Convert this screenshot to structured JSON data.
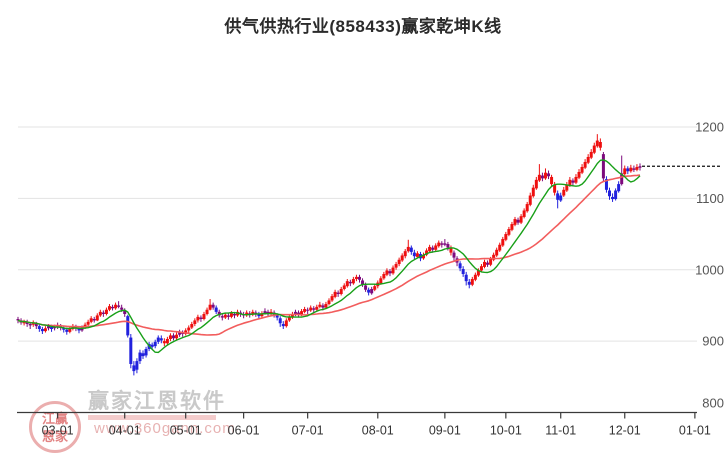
{
  "title": "供气供热行业(858433)赢家乾坤K线",
  "watermark": {
    "logo_line1": "江赢",
    "logo_line2": "恩家",
    "name": "赢家江恩软件",
    "url": "www.360gann.com"
  },
  "chart_data": {
    "type": "candlestick",
    "title": "供气供热行业(858433)赢家乾坤K线",
    "legend_position": "none",
    "grid": true,
    "y_axis": {
      "min": 800,
      "max": 1200,
      "ticks": [
        1200,
        1100,
        1000,
        900,
        800
      ],
      "side": "right"
    },
    "x_axis": {
      "tick_labels": [
        "03-01",
        "04-01",
        "05-01",
        "06-01",
        "07-01",
        "08-01",
        "09-01",
        "10-01",
        "11-01",
        "12-01",
        "01-01"
      ],
      "tick_indices": [
        13,
        35,
        55,
        74,
        95,
        118,
        140,
        160,
        178,
        199,
        222
      ]
    },
    "last_price": 1145,
    "ma": {
      "fast_period": 10,
      "slow_period": 30
    },
    "colors": {
      "up": "#ee0f0f",
      "down": "#2121dd",
      "neutral": "#7d0a7d",
      "ma_fast": "#18a018",
      "ma_slow": "#f25d5d",
      "grid": "#e3e3e3",
      "axis": "#3a3a3a",
      "y_label": "#555555",
      "x_label": "#333333",
      "last_price_line": "#111111"
    },
    "candles": [
      [
        931,
        934,
        925,
        929,
        2
      ],
      [
        929,
        932,
        923,
        926,
        2
      ],
      [
        925,
        930,
        922,
        928,
        0
      ],
      [
        927,
        930,
        920,
        924,
        2
      ],
      [
        924,
        927,
        917,
        922,
        2
      ],
      [
        923,
        929,
        920,
        925,
        0
      ],
      [
        924,
        927,
        917,
        921,
        2
      ],
      [
        921,
        924,
        913,
        917,
        1
      ],
      [
        917,
        920,
        910,
        914,
        1
      ],
      [
        914,
        921,
        912,
        918,
        0
      ],
      [
        918,
        924,
        915,
        921,
        2
      ],
      [
        920,
        923,
        913,
        917,
        1
      ],
      [
        918,
        923,
        915,
        920,
        2
      ],
      [
        920,
        926,
        917,
        922,
        2
      ],
      [
        921,
        924,
        915,
        919,
        2
      ],
      [
        918,
        922,
        912,
        916,
        1
      ],
      [
        916,
        919,
        909,
        913,
        1
      ],
      [
        913,
        920,
        911,
        917,
        0
      ],
      [
        917,
        924,
        915,
        921,
        0
      ],
      [
        920,
        923,
        914,
        918,
        2
      ],
      [
        918,
        921,
        911,
        915,
        1
      ],
      [
        915,
        922,
        913,
        919,
        2
      ],
      [
        919,
        926,
        917,
        923,
        0
      ],
      [
        923,
        930,
        921,
        927,
        0
      ],
      [
        927,
        935,
        925,
        932,
        0
      ],
      [
        931,
        934,
        926,
        929,
        2
      ],
      [
        929,
        939,
        928,
        936,
        0
      ],
      [
        936,
        944,
        934,
        941,
        0
      ],
      [
        940,
        943,
        934,
        938,
        2
      ],
      [
        938,
        947,
        936,
        944,
        0
      ],
      [
        944,
        952,
        942,
        949,
        0
      ],
      [
        948,
        951,
        943,
        946,
        2
      ],
      [
        946,
        954,
        944,
        951,
        0
      ],
      [
        950,
        956,
        946,
        948,
        2
      ],
      [
        947,
        951,
        941,
        944,
        2
      ],
      [
        943,
        946,
        934,
        938,
        2
      ],
      [
        935,
        937,
        905,
        908,
        1
      ],
      [
        905,
        910,
        862,
        868,
        1
      ],
      [
        866,
        872,
        852,
        858,
        1
      ],
      [
        860,
        876,
        855,
        872,
        1
      ],
      [
        872,
        888,
        868,
        884,
        1
      ],
      [
        883,
        887,
        875,
        879,
        1
      ],
      [
        880,
        892,
        877,
        889,
        1
      ],
      [
        889,
        899,
        886,
        896,
        1
      ],
      [
        895,
        898,
        888,
        892,
        1
      ],
      [
        893,
        902,
        890,
        899,
        1
      ],
      [
        899,
        908,
        896,
        905,
        1
      ],
      [
        904,
        908,
        897,
        901,
        1
      ],
      [
        900,
        904,
        893,
        897,
        0
      ],
      [
        897,
        906,
        895,
        903,
        0
      ],
      [
        903,
        911,
        900,
        908,
        0
      ],
      [
        908,
        911,
        901,
        904,
        2
      ],
      [
        904,
        912,
        902,
        909,
        0
      ],
      [
        909,
        916,
        906,
        913,
        2
      ],
      [
        912,
        915,
        906,
        910,
        2
      ],
      [
        910,
        918,
        908,
        915,
        0
      ],
      [
        915,
        922,
        912,
        919,
        0
      ],
      [
        919,
        927,
        917,
        924,
        0
      ],
      [
        924,
        932,
        921,
        929,
        0
      ],
      [
        929,
        937,
        926,
        934,
        0
      ],
      [
        933,
        936,
        927,
        931,
        2
      ],
      [
        931,
        941,
        929,
        938,
        0
      ],
      [
        938,
        947,
        936,
        944,
        0
      ],
      [
        944,
        959,
        943,
        951,
        0
      ],
      [
        951,
        954,
        944,
        947,
        2
      ],
      [
        947,
        950,
        938,
        941,
        1
      ],
      [
        941,
        944,
        933,
        936,
        2
      ],
      [
        935,
        938,
        929,
        933,
        2
      ],
      [
        933,
        940,
        931,
        937,
        0
      ],
      [
        936,
        939,
        930,
        934,
        2
      ],
      [
        934,
        942,
        932,
        939,
        0
      ],
      [
        938,
        941,
        932,
        936,
        2
      ],
      [
        936,
        944,
        934,
        941,
        0
      ],
      [
        940,
        943,
        934,
        938,
        2
      ],
      [
        938,
        941,
        932,
        936,
        2
      ],
      [
        936,
        943,
        934,
        940,
        0
      ],
      [
        939,
        942,
        933,
        937,
        2
      ],
      [
        937,
        944,
        935,
        941,
        0
      ],
      [
        940,
        943,
        934,
        938,
        2
      ],
      [
        938,
        941,
        931,
        935,
        1
      ],
      [
        935,
        942,
        933,
        939,
        0
      ],
      [
        939,
        946,
        937,
        942,
        2
      ],
      [
        941,
        944,
        935,
        938,
        2
      ],
      [
        938,
        945,
        936,
        941,
        0
      ],
      [
        940,
        943,
        933,
        937,
        2
      ],
      [
        936,
        939,
        929,
        933,
        1
      ],
      [
        932,
        935,
        920,
        925,
        1
      ],
      [
        924,
        928,
        917,
        921,
        1
      ],
      [
        921,
        932,
        919,
        929,
        0
      ],
      [
        929,
        937,
        927,
        934,
        0
      ],
      [
        933,
        941,
        931,
        938,
        0
      ],
      [
        938,
        944,
        935,
        941,
        2
      ],
      [
        940,
        943,
        933,
        937,
        2
      ],
      [
        937,
        945,
        935,
        942,
        0
      ],
      [
        941,
        948,
        939,
        945,
        0
      ],
      [
        944,
        947,
        938,
        943,
        2
      ],
      [
        943,
        950,
        941,
        947,
        0
      ],
      [
        946,
        949,
        940,
        944,
        2
      ],
      [
        944,
        951,
        942,
        948,
        0
      ],
      [
        948,
        955,
        946,
        951,
        0
      ],
      [
        950,
        953,
        943,
        947,
        2
      ],
      [
        947,
        955,
        945,
        952,
        0
      ],
      [
        952,
        960,
        950,
        957,
        0
      ],
      [
        957,
        966,
        955,
        963,
        0
      ],
      [
        962,
        972,
        960,
        969,
        0
      ],
      [
        968,
        971,
        962,
        966,
        2
      ],
      [
        966,
        976,
        964,
        973,
        0
      ],
      [
        973,
        981,
        971,
        978,
        0
      ],
      [
        977,
        987,
        975,
        984,
        0
      ],
      [
        983,
        986,
        977,
        981,
        2
      ],
      [
        981,
        990,
        979,
        987,
        0
      ],
      [
        987,
        993,
        984,
        990,
        0
      ],
      [
        990,
        993,
        982,
        986,
        2
      ],
      [
        985,
        988,
        976,
        979,
        2
      ],
      [
        978,
        982,
        969,
        972,
        2
      ],
      [
        972,
        975,
        964,
        968,
        1
      ],
      [
        967,
        976,
        965,
        973,
        2
      ],
      [
        972,
        980,
        970,
        977,
        0
      ],
      [
        977,
        985,
        974,
        982,
        0
      ],
      [
        981,
        991,
        979,
        988,
        0
      ],
      [
        988,
        997,
        986,
        994,
        0
      ],
      [
        993,
        1002,
        991,
        999,
        0
      ],
      [
        998,
        1001,
        991,
        995,
        2
      ],
      [
        995,
        1006,
        993,
        1003,
        0
      ],
      [
        1003,
        1011,
        1000,
        1008,
        0
      ],
      [
        1008,
        1017,
        1005,
        1014,
        0
      ],
      [
        1013,
        1023,
        1011,
        1020,
        0
      ],
      [
        1019,
        1029,
        1016,
        1026,
        0
      ],
      [
        1026,
        1042,
        1024,
        1032,
        0
      ],
      [
        1031,
        1034,
        1021,
        1025,
        1
      ],
      [
        1024,
        1028,
        1015,
        1019,
        1
      ],
      [
        1018,
        1026,
        1016,
        1023,
        0
      ],
      [
        1022,
        1025,
        1012,
        1016,
        1
      ],
      [
        1016,
        1024,
        1014,
        1021,
        0
      ],
      [
        1021,
        1030,
        1019,
        1027,
        0
      ],
      [
        1026,
        1035,
        1024,
        1032,
        0
      ],
      [
        1031,
        1034,
        1024,
        1028,
        2
      ],
      [
        1028,
        1037,
        1026,
        1034,
        0
      ],
      [
        1033,
        1041,
        1031,
        1038,
        0
      ],
      [
        1037,
        1040,
        1031,
        1035,
        2
      ],
      [
        1035,
        1043,
        1033,
        1037,
        2
      ],
      [
        1036,
        1039,
        1027,
        1031,
        2
      ],
      [
        1031,
        1034,
        1020,
        1024,
        0
      ],
      [
        1024,
        1027,
        1013,
        1017,
        2
      ],
      [
        1016,
        1019,
        1005,
        1010,
        2
      ],
      [
        1009,
        1012,
        998,
        1002,
        1
      ],
      [
        1001,
        1005,
        990,
        994,
        1
      ],
      [
        993,
        997,
        978,
        984,
        1
      ],
      [
        983,
        987,
        974,
        979,
        1
      ],
      [
        979,
        990,
        977,
        987,
        0
      ],
      [
        986,
        996,
        984,
        993,
        0
      ],
      [
        992,
        1002,
        990,
        999,
        0
      ],
      [
        999,
        1008,
        997,
        1005,
        0
      ],
      [
        1004,
        1014,
        1002,
        1011,
        0
      ],
      [
        1010,
        1013,
        1004,
        1007,
        2
      ],
      [
        1007,
        1018,
        1005,
        1015,
        0
      ],
      [
        1014,
        1024,
        1012,
        1021,
        0
      ],
      [
        1020,
        1031,
        1018,
        1028,
        0
      ],
      [
        1027,
        1038,
        1025,
        1035,
        0
      ],
      [
        1034,
        1046,
        1032,
        1043,
        0
      ],
      [
        1042,
        1053,
        1040,
        1050,
        0
      ],
      [
        1049,
        1060,
        1047,
        1057,
        0
      ],
      [
        1056,
        1067,
        1054,
        1064,
        0
      ],
      [
        1063,
        1074,
        1061,
        1071,
        0
      ],
      [
        1070,
        1073,
        1063,
        1066,
        2
      ],
      [
        1066,
        1078,
        1064,
        1075,
        0
      ],
      [
        1074,
        1086,
        1072,
        1083,
        0
      ],
      [
        1082,
        1095,
        1080,
        1092,
        0
      ],
      [
        1091,
        1108,
        1089,
        1104,
        0
      ],
      [
        1103,
        1119,
        1101,
        1115,
        0
      ],
      [
        1114,
        1130,
        1112,
        1126,
        0
      ],
      [
        1125,
        1148,
        1123,
        1133,
        0
      ],
      [
        1132,
        1136,
        1124,
        1128,
        2
      ],
      [
        1128,
        1142,
        1126,
        1136,
        0
      ],
      [
        1135,
        1139,
        1127,
        1131,
        2
      ],
      [
        1130,
        1133,
        1116,
        1120,
        0
      ],
      [
        1119,
        1123,
        1104,
        1108,
        0
      ],
      [
        1107,
        1111,
        1086,
        1098,
        1
      ],
      [
        1097,
        1108,
        1095,
        1104,
        1
      ],
      [
        1104,
        1116,
        1102,
        1112,
        0
      ],
      [
        1111,
        1123,
        1109,
        1119,
        0
      ],
      [
        1118,
        1130,
        1116,
        1126,
        0
      ],
      [
        1125,
        1128,
        1118,
        1122,
        2
      ],
      [
        1122,
        1134,
        1120,
        1130,
        0
      ],
      [
        1129,
        1141,
        1127,
        1137,
        0
      ],
      [
        1136,
        1148,
        1134,
        1144,
        0
      ],
      [
        1143,
        1155,
        1141,
        1151,
        0
      ],
      [
        1150,
        1162,
        1148,
        1158,
        0
      ],
      [
        1157,
        1169,
        1155,
        1165,
        0
      ],
      [
        1164,
        1178,
        1162,
        1174,
        0
      ],
      [
        1173,
        1190,
        1171,
        1181,
        0
      ],
      [
        1179,
        1184,
        1167,
        1171,
        0
      ],
      [
        1162,
        1165,
        1124,
        1128,
        2
      ],
      [
        1127,
        1131,
        1108,
        1112,
        1
      ],
      [
        1111,
        1115,
        1098,
        1103,
        1
      ],
      [
        1102,
        1107,
        1095,
        1099,
        1
      ],
      [
        1099,
        1114,
        1097,
        1111,
        1
      ],
      [
        1110,
        1124,
        1108,
        1120,
        1
      ],
      [
        1120,
        1160,
        1118,
        1135,
        2
      ],
      [
        1134,
        1146,
        1132,
        1142,
        0
      ],
      [
        1142,
        1145,
        1134,
        1138,
        1
      ],
      [
        1138,
        1147,
        1136,
        1143,
        0
      ],
      [
        1142,
        1146,
        1137,
        1140,
        2
      ],
      [
        1140,
        1148,
        1138,
        1144,
        0
      ],
      [
        1143,
        1149,
        1139,
        1145,
        2
      ]
    ]
  }
}
